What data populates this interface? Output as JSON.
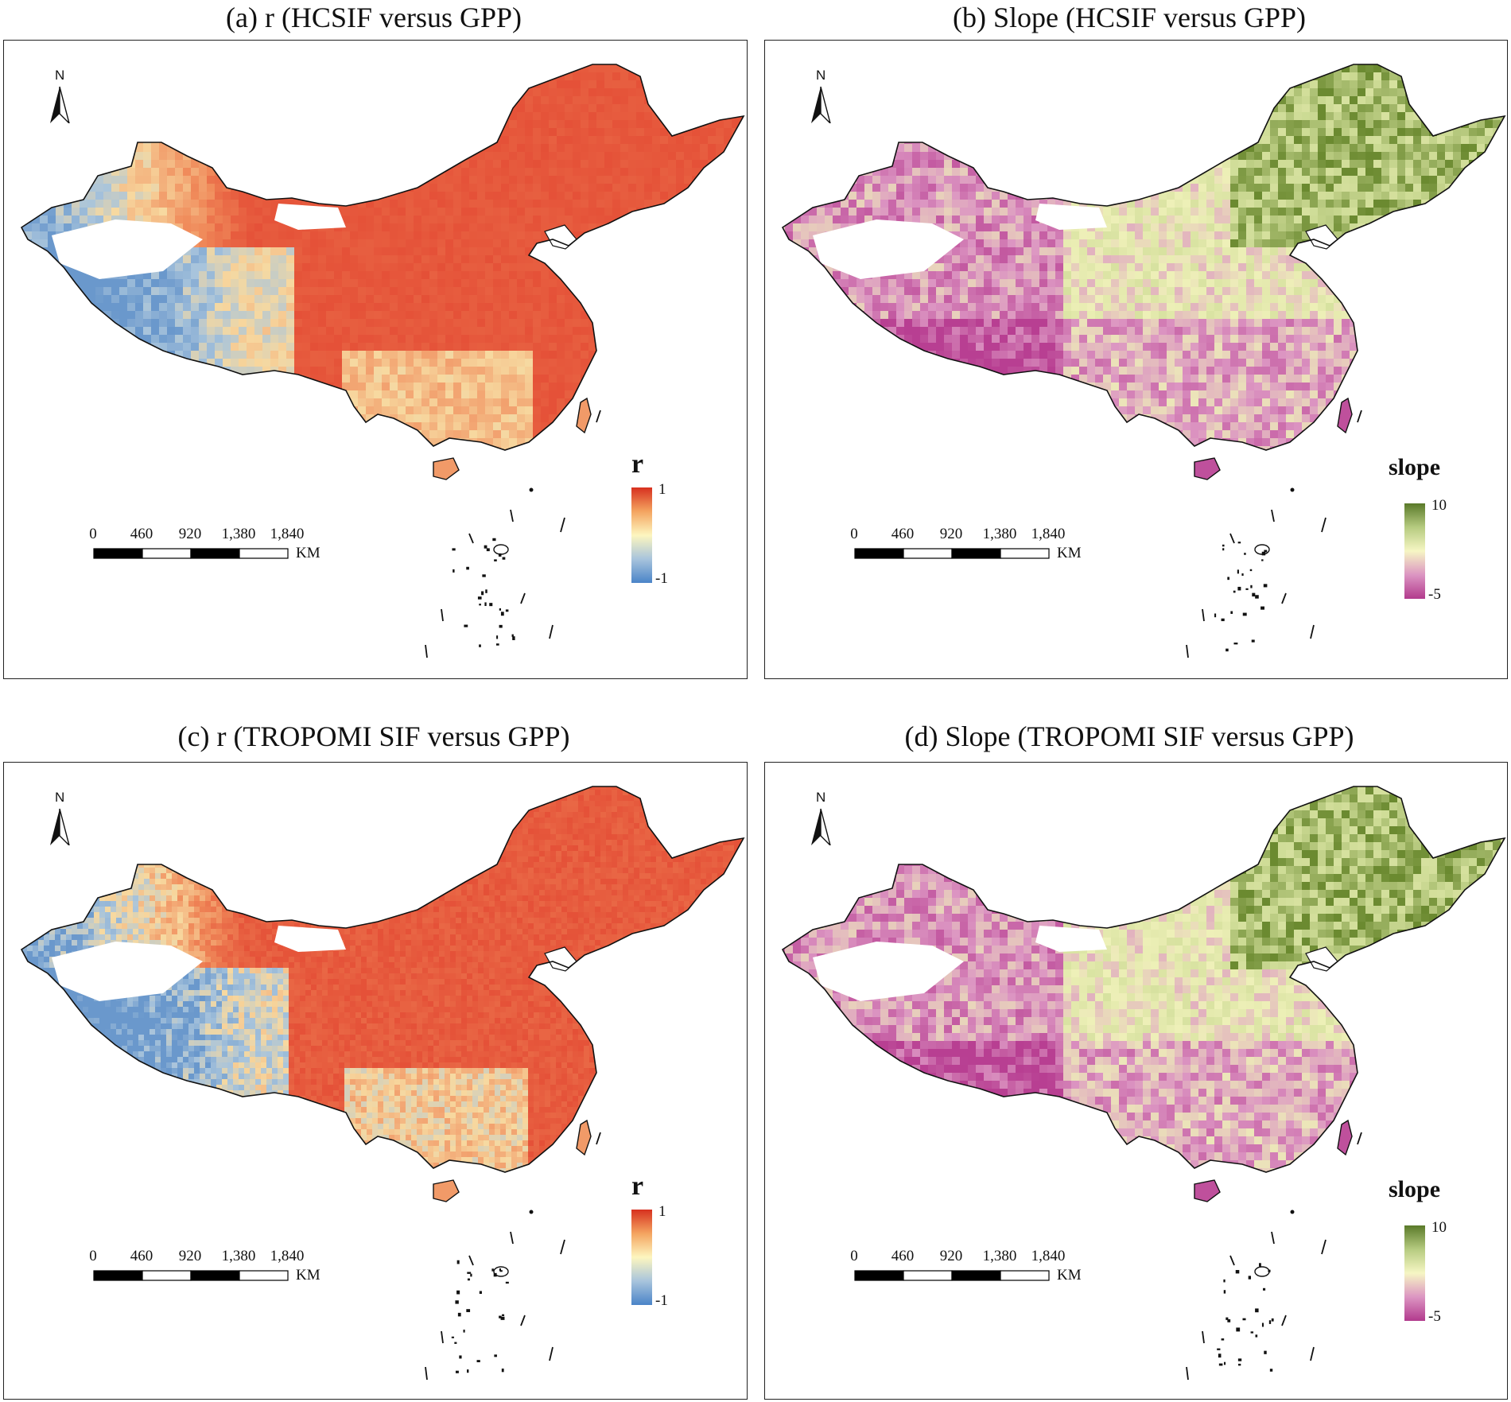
{
  "figure": {
    "panels": [
      {
        "id": "a",
        "title": "(a) r (HCSIF versus GPP)",
        "legend": {
          "title": "r",
          "max_label": "1",
          "min_label": "-1",
          "colors": [
            "#d7301f",
            "#f4a460",
            "#fdf6bf",
            "#a8c4dc",
            "#4a84c8"
          ]
        },
        "metric": "r"
      },
      {
        "id": "b",
        "title": "(b) Slope (HCSIF versus GPP)",
        "legend": {
          "title": "slope",
          "max_label": "10",
          "min_label": "-5",
          "colors": [
            "#5a7a2a",
            "#b6cb80",
            "#f6f6c4",
            "#dc95c2",
            "#b23a8d"
          ]
        },
        "metric": "slope"
      },
      {
        "id": "c",
        "title": "(c) r (TROPOMI SIF versus GPP)",
        "legend": {
          "title": "r",
          "max_label": "1",
          "min_label": "-1",
          "colors": [
            "#d7301f",
            "#f4a460",
            "#fdf6bf",
            "#a8c4dc",
            "#4a84c8"
          ]
        },
        "metric": "r"
      },
      {
        "id": "d",
        "title": "(d) Slope (TROPOMI SIF versus GPP)",
        "legend": {
          "title": "slope",
          "max_label": "10",
          "min_label": "-5",
          "colors": [
            "#5a7a2a",
            "#b6cb80",
            "#f6f6c4",
            "#dc95c2",
            "#b23a8d"
          ]
        },
        "metric": "slope"
      }
    ],
    "north_arrow": {
      "label": "N"
    },
    "scale_bar": {
      "ticks": [
        "0",
        "460",
        "920",
        "1,380",
        "1,840"
      ],
      "unit": "KM"
    },
    "colors": {
      "r_high": "#e03a2a",
      "r_mid": "#f7d9a0",
      "r_low": "#6a98cc",
      "slope_high": "#6b8a30",
      "slope_mid": "#eef0b8",
      "slope_low": "#b83f92",
      "boundary": "#111111"
    }
  }
}
